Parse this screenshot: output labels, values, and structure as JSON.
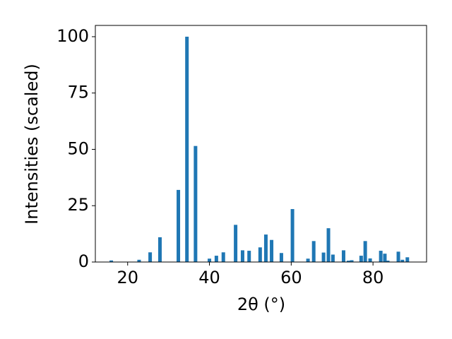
{
  "chart_data": {
    "type": "bar",
    "xlabel": "2θ (°)",
    "ylabel": "Intensities (scaled)",
    "x": [
      16.0,
      22.8,
      25.5,
      27.9,
      32.4,
      34.5,
      36.6,
      40.0,
      41.7,
      43.4,
      46.4,
      48.1,
      49.7,
      52.4,
      53.8,
      55.2,
      57.6,
      60.3,
      64.1,
      65.5,
      67.9,
      69.1,
      70.2,
      72.8,
      74.0,
      74.8,
      77.1,
      78.1,
      79.3,
      81.9,
      82.9,
      83.6,
      86.2,
      87.2,
      88.4
    ],
    "values": [
      0.7,
      1,
      4.3,
      11,
      32,
      100,
      51.5,
      1.5,
      2.8,
      4.3,
      16.5,
      5.2,
      5,
      6.5,
      12.2,
      9.8,
      4,
      23.5,
      1.5,
      9.3,
      4.2,
      15,
      3.3,
      5.2,
      0.6,
      0.8,
      2.8,
      9.3,
      1.6,
      5,
      3.7,
      0.6,
      4.6,
      1,
      2.1
    ],
    "color": "#1f77b4",
    "xlim": [
      12.1,
      93.1
    ],
    "xticks": [
      20,
      40,
      60,
      80
    ],
    "ylim": [
      0,
      105
    ],
    "yticks": [
      0,
      25,
      50,
      75,
      100
    ],
    "grid": false
  }
}
